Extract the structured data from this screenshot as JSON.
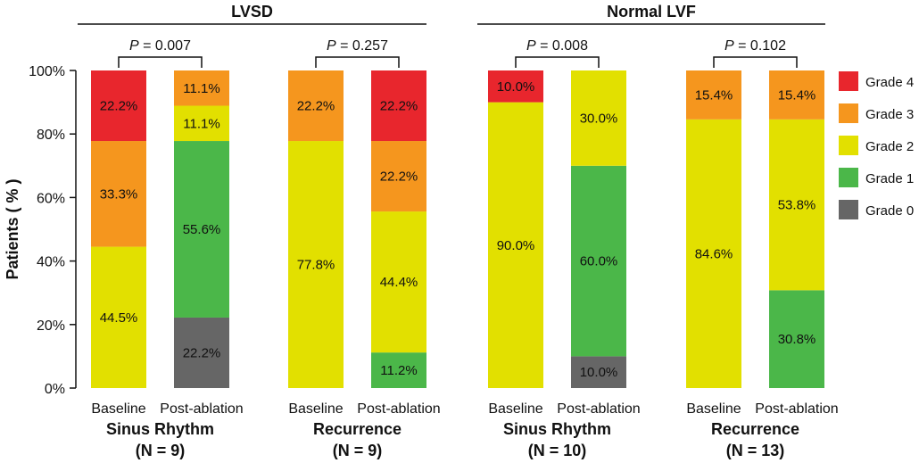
{
  "chart_data": {
    "type": "bar",
    "stacked": true,
    "ylabel": "Patients ( % )",
    "ylim": [
      0,
      100
    ],
    "yticks": [
      "0%",
      "20%",
      "40%",
      "60%",
      "80%",
      "100%"
    ],
    "grades": [
      {
        "name": "Grade 0",
        "color": "#666666"
      },
      {
        "name": "Grade 1",
        "color": "#4bb749"
      },
      {
        "name": "Grade 2",
        "color": "#e2e000"
      },
      {
        "name": "Grade 3",
        "color": "#f5961e"
      },
      {
        "name": "Grade 4",
        "color": "#e8262d"
      }
    ],
    "legend": [
      "Grade 4",
      "Grade 3",
      "Grade 2",
      "Grade 1",
      "Grade 0"
    ],
    "groups": [
      {
        "title": "LVSD",
        "subgroups": [
          0,
          1
        ]
      },
      {
        "title": "Normal LVF",
        "subgroups": [
          2,
          3
        ]
      }
    ],
    "subgroups": [
      {
        "title": "Sinus Rhythm",
        "n": "(N = 9)",
        "p": "P = 0.007"
      },
      {
        "title": "Recurrence",
        "n": "(N = 9)",
        "p": "P = 0.257"
      },
      {
        "title": "Sinus Rhythm",
        "n": "(N = 10)",
        "p": "P = 0.008"
      },
      {
        "title": "Recurrence",
        "n": "(N = 13)",
        "p": "P = 0.102"
      }
    ],
    "bars": [
      {
        "category": "Baseline",
        "subgroup": 0,
        "values": [
          0,
          0,
          44.5,
          33.3,
          22.2
        ],
        "labels": [
          "",
          "",
          "44.5%",
          "33.3%",
          "22.2%"
        ]
      },
      {
        "category": "Post-ablation",
        "subgroup": 0,
        "values": [
          22.2,
          55.6,
          11.1,
          11.1,
          0
        ],
        "labels": [
          "22.2%",
          "55.6%",
          "11.1%",
          "11.1%",
          ""
        ]
      },
      {
        "category": "Baseline",
        "subgroup": 1,
        "values": [
          0,
          0,
          77.8,
          22.2,
          0
        ],
        "labels": [
          "",
          "",
          "77.8%",
          "22.2%",
          ""
        ]
      },
      {
        "category": "Post-ablation",
        "subgroup": 1,
        "values": [
          0,
          11.2,
          44.4,
          22.2,
          22.2
        ],
        "labels": [
          "",
          "11.2%",
          "44.4%",
          "22.2%",
          "22.2%"
        ]
      },
      {
        "category": "Baseline",
        "subgroup": 2,
        "values": [
          0,
          0,
          90.0,
          0,
          10.0
        ],
        "labels": [
          "",
          "",
          "90.0%",
          "",
          "10.0%"
        ]
      },
      {
        "category": "Post-ablation",
        "subgroup": 2,
        "values": [
          10.0,
          60.0,
          30.0,
          0,
          0
        ],
        "labels": [
          "10.0%",
          "60.0%",
          "30.0%",
          "",
          ""
        ]
      },
      {
        "category": "Baseline",
        "subgroup": 3,
        "values": [
          0,
          0,
          84.6,
          15.4,
          0
        ],
        "labels": [
          "",
          "",
          "84.6%",
          "15.4%",
          ""
        ]
      },
      {
        "category": "Post-ablation",
        "subgroup": 3,
        "values": [
          0,
          30.8,
          53.8,
          15.4,
          0
        ],
        "labels": [
          "",
          "30.8%",
          "53.8%",
          "15.4%",
          ""
        ]
      }
    ]
  }
}
